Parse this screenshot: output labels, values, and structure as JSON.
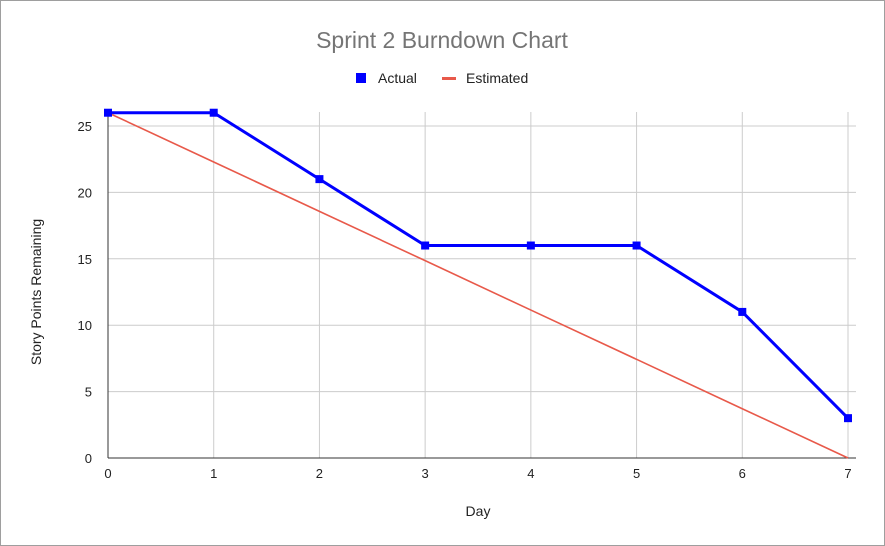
{
  "chart_data": {
    "type": "line",
    "title": "Sprint 2 Burndown Chart",
    "xlabel": "Day",
    "ylabel": "Story Points Remaining",
    "x": [
      0,
      1,
      2,
      3,
      4,
      5,
      6,
      7
    ],
    "xlim": [
      0,
      7
    ],
    "ylim": [
      0,
      25
    ],
    "yticks": [
      0,
      5,
      10,
      15,
      20,
      25
    ],
    "grid": true,
    "legend_position": "top",
    "series": [
      {
        "name": "Actual",
        "color": "#0000ff",
        "marker": "square",
        "values": [
          26,
          26,
          21,
          16,
          16,
          16,
          11,
          3
        ]
      },
      {
        "name": "Estimated",
        "color": "#e8594a",
        "marker": "none",
        "values": [
          26,
          22.29,
          18.57,
          14.86,
          11.14,
          7.43,
          3.71,
          0
        ]
      }
    ]
  }
}
